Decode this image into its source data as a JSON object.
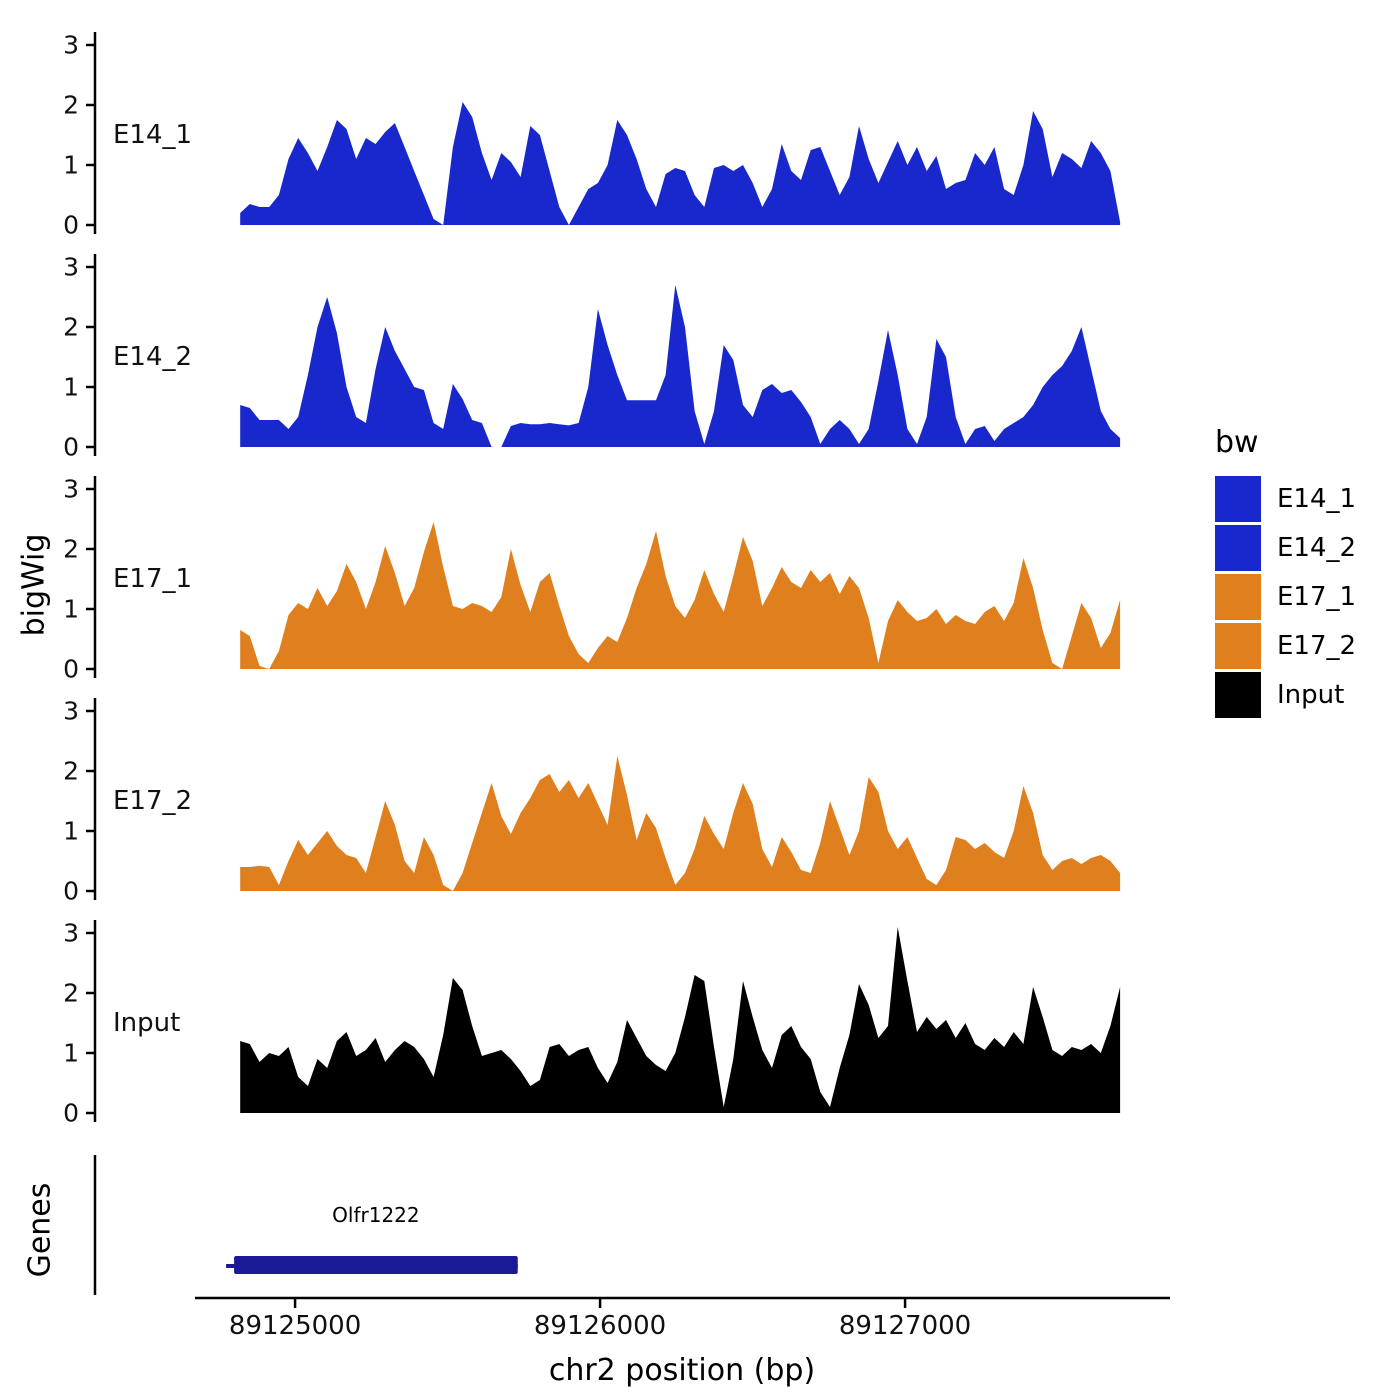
{
  "figure": {
    "y_axis_label": "bigWig",
    "genes_axis_label": "Genes",
    "x_axis_label": "chr2 position (bp)"
  },
  "legend": {
    "title": "bw",
    "entries": [
      {
        "label": "E14_1",
        "color": "#1828CC"
      },
      {
        "label": "E14_2",
        "color": "#1828CC"
      },
      {
        "label": "E17_1",
        "color": "#E07F1E"
      },
      {
        "label": "E17_2",
        "color": "#E07F1E"
      },
      {
        "label": "Input",
        "color": "#000000"
      }
    ]
  },
  "chart_data": {
    "type": "area",
    "title": "",
    "xlabel": "chr2 position (bp)",
    "ylabel": "bigWig",
    "x_domain": [
      89124344,
      89127885
    ],
    "x_ticks": [
      {
        "value": 89125000,
        "label": "89125000"
      },
      {
        "value": 89126000,
        "label": "89126000"
      },
      {
        "value": 89127000,
        "label": "89127000"
      }
    ],
    "y_ticks": [
      0,
      1,
      2,
      3
    ],
    "ylim": [
      0,
      3.2
    ],
    "grid": "off",
    "legend_position": "right",
    "tracks": [
      {
        "name": "E14_1",
        "color": "#1828CC",
        "x_start": 89124820,
        "x_end": 89127705,
        "values": [
          0.2,
          0.35,
          0.3,
          0.3,
          0.5,
          1.1,
          1.45,
          1.2,
          0.9,
          1.3,
          1.75,
          1.6,
          1.1,
          1.45,
          1.35,
          1.55,
          1.7,
          1.3,
          0.9,
          0.5,
          0.1,
          0.0,
          1.3,
          2.05,
          1.8,
          1.2,
          0.75,
          1.2,
          1.05,
          0.8,
          1.65,
          1.5,
          0.9,
          0.3,
          0.0,
          0.3,
          0.6,
          0.7,
          1.0,
          1.75,
          1.5,
          1.1,
          0.6,
          0.3,
          0.85,
          0.95,
          0.9,
          0.5,
          0.3,
          0.95,
          1.0,
          0.9,
          1.0,
          0.7,
          0.3,
          0.6,
          1.35,
          0.9,
          0.75,
          1.25,
          1.3,
          0.9,
          0.5,
          0.8,
          1.65,
          1.1,
          0.7,
          1.05,
          1.4,
          1.0,
          1.3,
          0.9,
          1.15,
          0.6,
          0.7,
          0.75,
          1.2,
          1.0,
          1.3,
          0.6,
          0.5,
          1.0,
          1.9,
          1.6,
          0.8,
          1.2,
          1.1,
          0.95,
          1.4,
          1.2,
          0.9,
          0.05
        ]
      },
      {
        "name": "E14_2",
        "color": "#1828CC",
        "x_start": 89124820,
        "x_end": 89127705,
        "values": [
          0.7,
          0.65,
          0.45,
          0.45,
          0.45,
          0.3,
          0.5,
          1.2,
          2.0,
          2.5,
          1.9,
          1.0,
          0.5,
          0.4,
          1.3,
          2.0,
          1.6,
          1.3,
          1.0,
          0.95,
          0.4,
          0.3,
          1.05,
          0.8,
          0.45,
          0.4,
          0.0,
          0.0,
          0.35,
          0.4,
          0.38,
          0.38,
          0.4,
          0.38,
          0.36,
          0.4,
          1.0,
          2.3,
          1.7,
          1.2,
          0.78,
          0.78,
          0.78,
          0.78,
          1.2,
          2.7,
          2.0,
          0.6,
          0.05,
          0.6,
          1.7,
          1.45,
          0.7,
          0.5,
          0.95,
          1.05,
          0.9,
          0.95,
          0.75,
          0.5,
          0.05,
          0.3,
          0.45,
          0.3,
          0.05,
          0.3,
          1.1,
          1.95,
          1.2,
          0.3,
          0.05,
          0.5,
          1.8,
          1.5,
          0.5,
          0.05,
          0.3,
          0.35,
          0.1,
          0.3,
          0.4,
          0.5,
          0.7,
          1.0,
          1.2,
          1.35,
          1.6,
          2.0,
          1.3,
          0.6,
          0.3,
          0.15
        ]
      },
      {
        "name": "E17_1",
        "color": "#E07F1E",
        "x_start": 89124820,
        "x_end": 89127705,
        "values": [
          0.65,
          0.55,
          0.05,
          0.0,
          0.3,
          0.9,
          1.1,
          1.0,
          1.35,
          1.05,
          1.3,
          1.75,
          1.45,
          1.0,
          1.45,
          2.05,
          1.6,
          1.05,
          1.35,
          1.95,
          2.45,
          1.7,
          1.05,
          1.0,
          1.1,
          1.05,
          0.95,
          1.2,
          2.0,
          1.4,
          0.95,
          1.45,
          1.6,
          1.05,
          0.55,
          0.25,
          0.1,
          0.35,
          0.55,
          0.45,
          0.85,
          1.35,
          1.75,
          2.3,
          1.55,
          1.05,
          0.85,
          1.15,
          1.65,
          1.25,
          0.95,
          1.55,
          2.2,
          1.8,
          1.05,
          1.35,
          1.7,
          1.45,
          1.35,
          1.65,
          1.45,
          1.6,
          1.25,
          1.55,
          1.35,
          0.85,
          0.1,
          0.8,
          1.15,
          0.95,
          0.8,
          0.85,
          1.0,
          0.75,
          0.9,
          0.8,
          0.75,
          0.95,
          1.05,
          0.8,
          1.1,
          1.85,
          1.35,
          0.65,
          0.1,
          0.0,
          0.55,
          1.1,
          0.85,
          0.35,
          0.6,
          1.15
        ]
      },
      {
        "name": "E17_2",
        "color": "#E07F1E",
        "x_start": 89124820,
        "x_end": 89127705,
        "values": [
          0.4,
          0.4,
          0.42,
          0.4,
          0.1,
          0.5,
          0.85,
          0.6,
          0.8,
          1.0,
          0.75,
          0.6,
          0.55,
          0.3,
          0.9,
          1.5,
          1.1,
          0.5,
          0.3,
          0.9,
          0.6,
          0.1,
          0.0,
          0.3,
          0.8,
          1.3,
          1.8,
          1.25,
          0.95,
          1.3,
          1.55,
          1.85,
          1.95,
          1.65,
          1.85,
          1.55,
          1.8,
          1.45,
          1.1,
          2.25,
          1.6,
          0.85,
          1.3,
          1.05,
          0.55,
          0.1,
          0.3,
          0.7,
          1.25,
          0.95,
          0.7,
          1.3,
          1.8,
          1.45,
          0.7,
          0.4,
          0.9,
          0.65,
          0.35,
          0.3,
          0.8,
          1.5,
          1.05,
          0.6,
          1.0,
          1.9,
          1.65,
          1.0,
          0.7,
          0.9,
          0.55,
          0.2,
          0.1,
          0.35,
          0.9,
          0.85,
          0.7,
          0.8,
          0.65,
          0.55,
          1.0,
          1.75,
          1.3,
          0.6,
          0.35,
          0.5,
          0.55,
          0.45,
          0.55,
          0.6,
          0.5,
          0.3
        ]
      },
      {
        "name": "Input",
        "color": "#000000",
        "x_start": 89124820,
        "x_end": 89127705,
        "values": [
          1.2,
          1.15,
          0.85,
          1.0,
          0.95,
          1.1,
          0.6,
          0.45,
          0.9,
          0.75,
          1.2,
          1.35,
          0.95,
          1.05,
          1.25,
          0.85,
          1.05,
          1.2,
          1.1,
          0.9,
          0.6,
          1.3,
          2.25,
          2.05,
          1.45,
          0.95,
          1.0,
          1.05,
          0.9,
          0.7,
          0.45,
          0.55,
          1.1,
          1.15,
          0.95,
          1.05,
          1.1,
          0.75,
          0.5,
          0.85,
          1.55,
          1.25,
          0.95,
          0.8,
          0.7,
          1.0,
          1.6,
          2.3,
          2.2,
          1.1,
          0.1,
          0.9,
          2.2,
          1.6,
          1.05,
          0.75,
          1.3,
          1.45,
          1.1,
          0.9,
          0.35,
          0.1,
          0.75,
          1.3,
          2.15,
          1.8,
          1.25,
          1.45,
          3.1,
          2.2,
          1.35,
          1.6,
          1.4,
          1.55,
          1.25,
          1.5,
          1.15,
          1.05,
          1.25,
          1.1,
          1.35,
          1.15,
          2.1,
          1.6,
          1.05,
          0.95,
          1.1,
          1.05,
          1.15,
          1.0,
          1.45,
          2.1
        ]
      }
    ],
    "gene": {
      "name": "Olfr1222",
      "start": 89124800,
      "end": 89125730,
      "color": "#1A1A96"
    }
  }
}
